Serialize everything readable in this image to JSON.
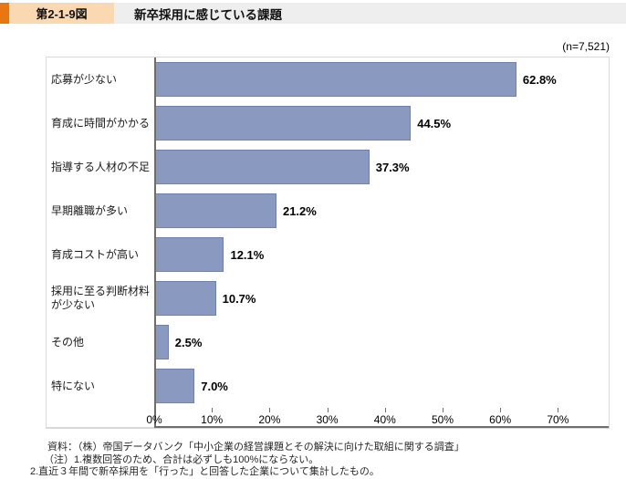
{
  "header": {
    "figure_number": "第2-1-9図",
    "title": "新卒採用に感じている課題"
  },
  "chart": {
    "sample_size": "(n=7,521)"
  },
  "chart_data": {
    "type": "bar",
    "orientation": "horizontal",
    "title": "新卒採用に感じている課題",
    "n_label": "(n=7,521)",
    "categories": [
      "応募が少ない",
      "育成に時間がかかる",
      "指導する人材の不足",
      "早期離職が多い",
      "育成コストが高い",
      "採用に至る判断材料\nが少ない",
      "その他",
      "特にない"
    ],
    "values": [
      62.8,
      44.5,
      37.3,
      21.2,
      12.1,
      10.7,
      2.5,
      7.0
    ],
    "value_labels": [
      "62.8%",
      "44.5%",
      "37.3%",
      "21.2%",
      "12.1%",
      "10.7%",
      "2.5%",
      "7.0%"
    ],
    "x_ticks": [
      "0%",
      "10%",
      "20%",
      "30%",
      "40%",
      "50%",
      "60%",
      "70%"
    ],
    "xlim": [
      0,
      70
    ],
    "x_display_max": 78.8,
    "xlabel": "",
    "ylabel": "",
    "grid": false,
    "legend": "none",
    "bar_color": "#8a99c0",
    "bar_border_color": "#7081ad"
  },
  "footer": {
    "source": "資料：（株）帝国データバンク「中小企業の経営課題とその解決に向けた取組に関する調査」",
    "note1": "（注）1.複数回答のため、合計は必ずしも100%にならない。",
    "note2": "2.直近３年間で新卒採用を「行った」と回答した企業について集計したもの。"
  },
  "colors": {
    "accent_orange": "#e87711",
    "figure_label_bg": "#fad9b2",
    "header_band_bg": "#eeeeee",
    "bar_fill": "#8a99c0",
    "bar_border": "#7081ad",
    "axis_line": "#6e6e6e",
    "panel_border": "#d9d9d9"
  }
}
